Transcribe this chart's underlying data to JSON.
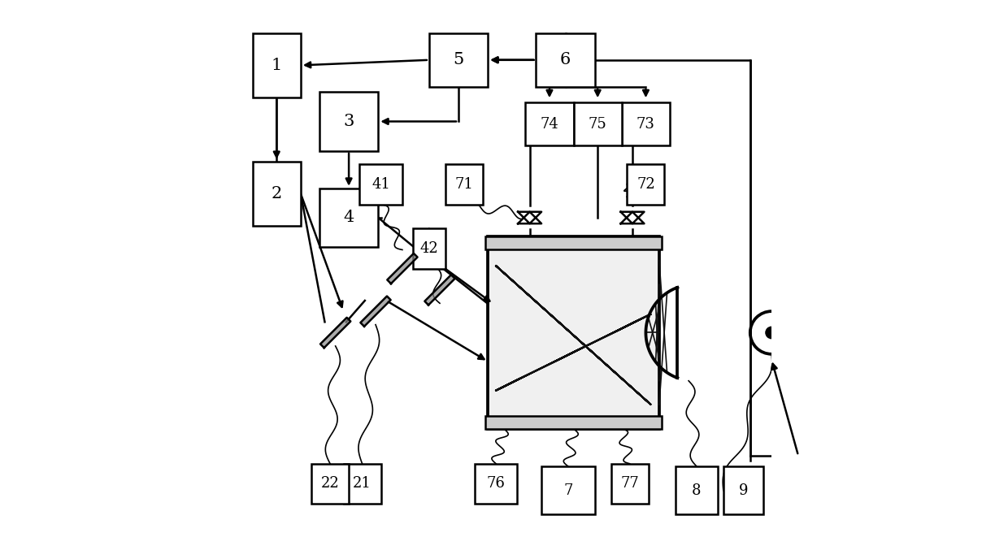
{
  "bg_color": "#ffffff",
  "line_color": "#000000",
  "box_color": "#ffffff",
  "box_edge": "#000000",
  "figsize": [
    12.4,
    6.61
  ],
  "dpi": 100,
  "boxes": {
    "1": [
      0.03,
      0.82,
      0.09,
      0.12
    ],
    "2": [
      0.03,
      0.58,
      0.09,
      0.12
    ],
    "3": [
      0.155,
      0.72,
      0.11,
      0.11
    ],
    "4": [
      0.155,
      0.54,
      0.11,
      0.11
    ],
    "5": [
      0.36,
      0.84,
      0.11,
      0.1
    ],
    "6": [
      0.56,
      0.84,
      0.11,
      0.1
    ],
    "41": [
      0.23,
      0.62,
      0.08,
      0.075
    ],
    "42": [
      0.33,
      0.5,
      0.06,
      0.075
    ],
    "71": [
      0.39,
      0.62,
      0.07,
      0.075
    ],
    "72": [
      0.73,
      0.62,
      0.07,
      0.075
    ],
    "73": [
      0.72,
      0.73,
      0.09,
      0.08
    ],
    "74": [
      0.54,
      0.73,
      0.09,
      0.08
    ],
    "75": [
      0.63,
      0.73,
      0.09,
      0.08
    ],
    "76": [
      0.445,
      0.06,
      0.08,
      0.075
    ],
    "77": [
      0.7,
      0.06,
      0.07,
      0.075
    ],
    "7": [
      0.57,
      0.04,
      0.1,
      0.09
    ],
    "8": [
      0.82,
      0.04,
      0.08,
      0.09
    ],
    "9": [
      0.91,
      0.04,
      0.075,
      0.09
    ],
    "21": [
      0.2,
      0.06,
      0.07,
      0.075
    ],
    "22": [
      0.14,
      0.06,
      0.07,
      0.075
    ]
  }
}
